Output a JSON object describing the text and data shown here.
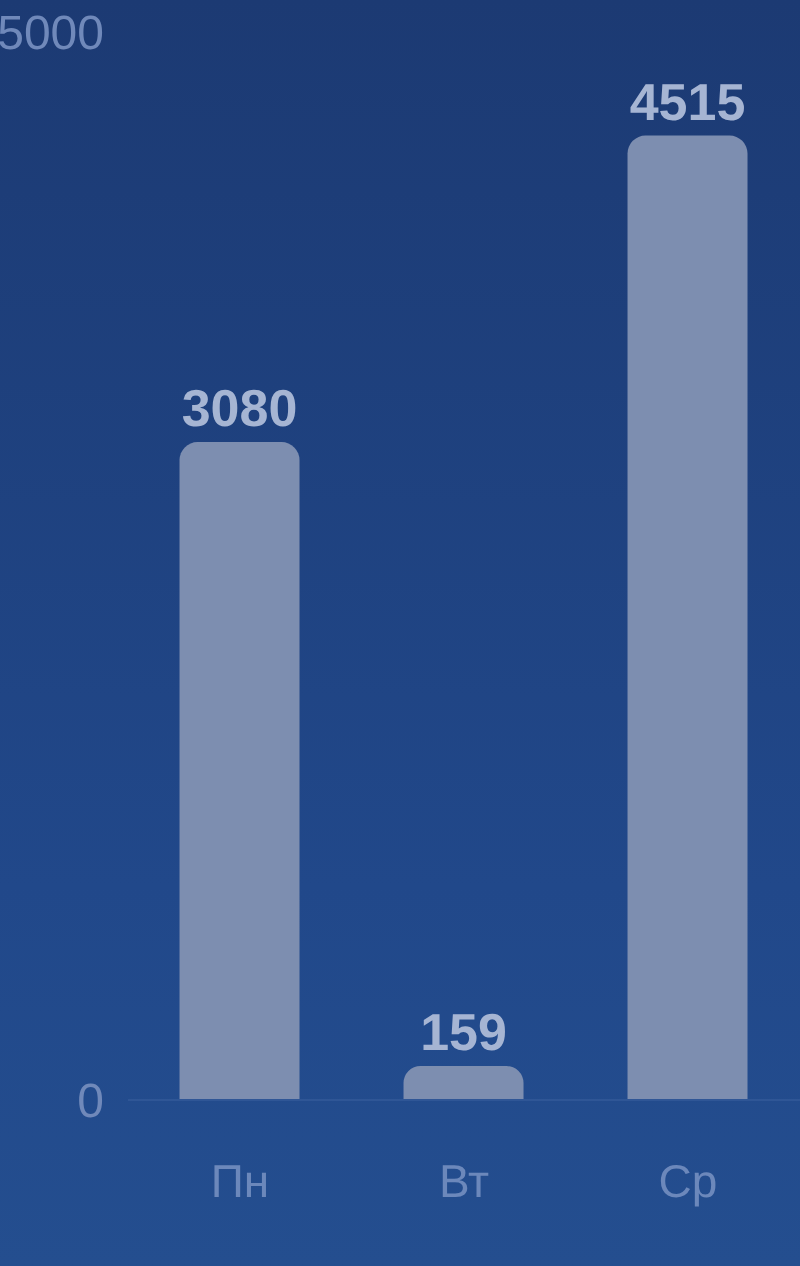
{
  "chart_data": {
    "type": "bar",
    "categories": [
      "Пн",
      "Вт",
      "Ср"
    ],
    "values": [
      3080,
      159,
      4515
    ],
    "color": "#7d8eb0",
    "ylim": [
      0,
      5000
    ],
    "yticks": [
      0,
      5000
    ],
    "data_labels": true
  }
}
